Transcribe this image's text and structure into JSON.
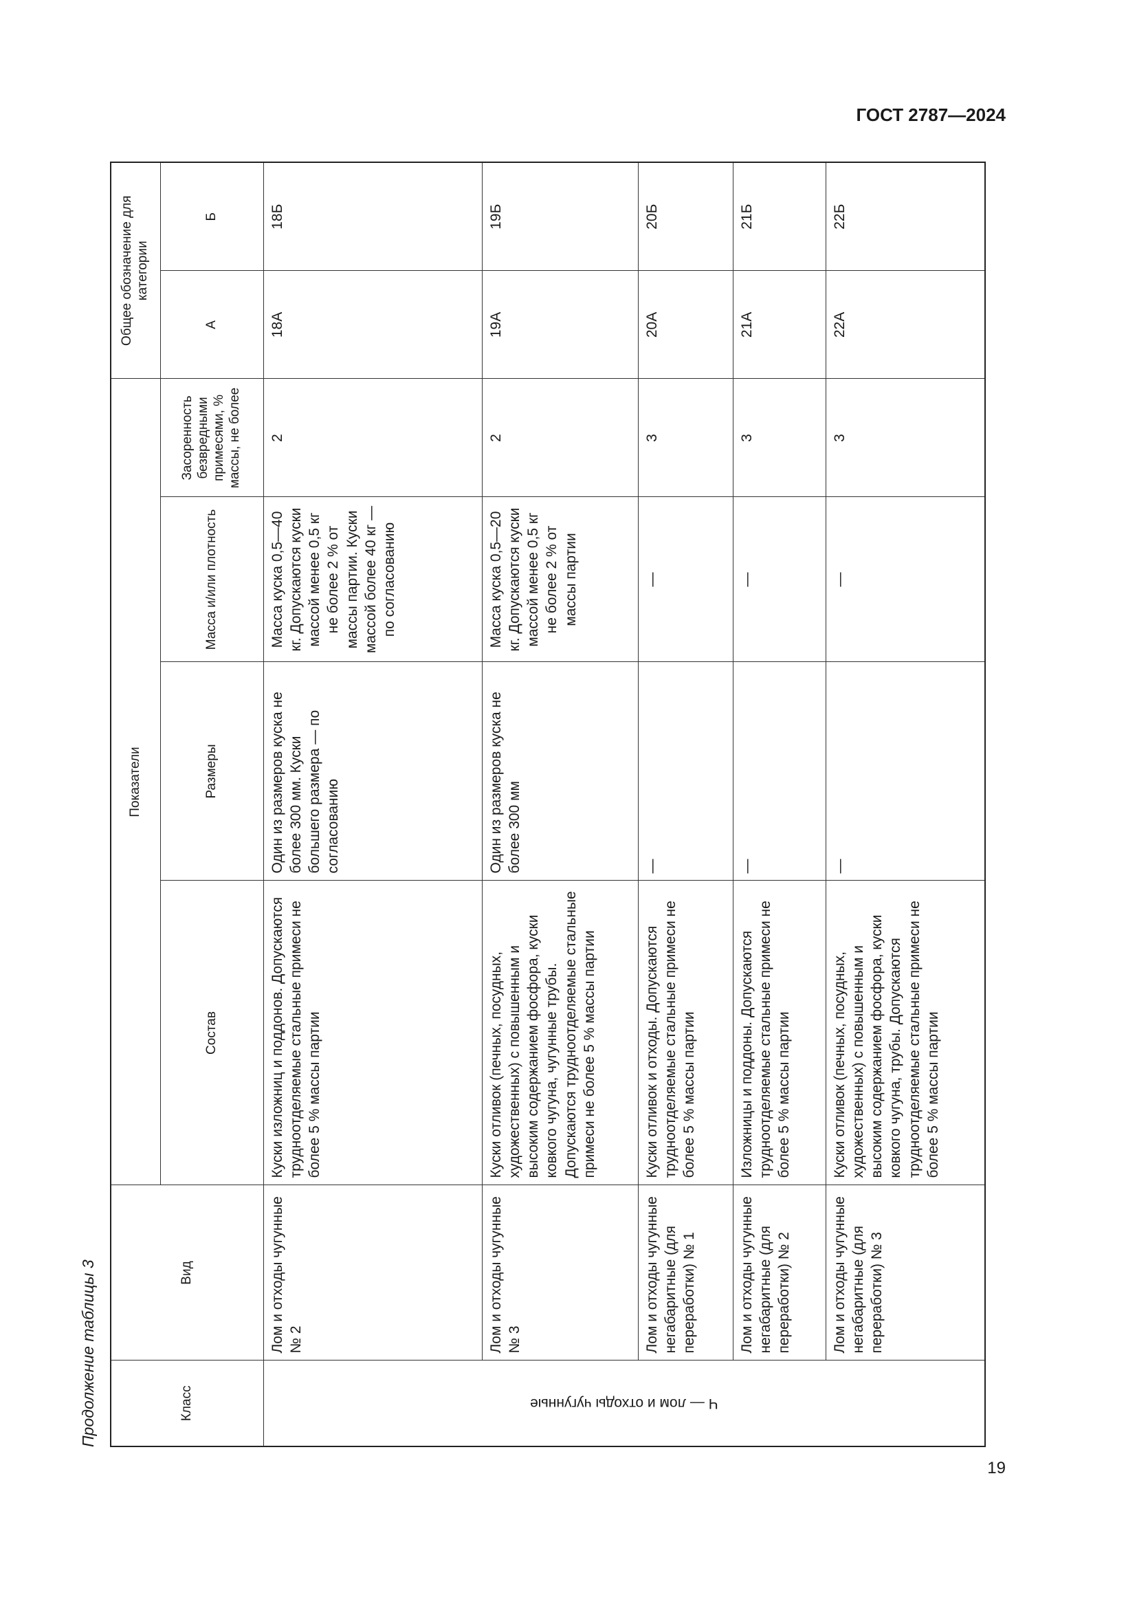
{
  "header": {
    "standard": "ГОСТ 2787—2024"
  },
  "caption": "Продолжение таблицы 3",
  "table": {
    "columns": {
      "class": "Класс",
      "kind": "Вид",
      "indicators": "Показатели",
      "composition": "Состав",
      "sizes": "Размеры",
      "mass": "Масса и/или плотность",
      "contamination": "Засоренность безвредными примесями, % массы, не более",
      "designation": "Общее обозначение для категории",
      "cat_a": "А",
      "cat_b": "Б"
    },
    "class_label": "Ч — лом и отходы чугунные",
    "rows": [
      [
        "Лом и отходы чугунные № 2",
        "Куски изложниц и поддонов. Допускаются трудноотделяемые стальные примеси не более 5 % массы партии",
        "Один из размеров куска не более 300 мм. Куски большего размера — по согласованию",
        "Масса куска 0,5—40 кг. Допускаются куски массой менее 0,5 кг не более 2 % от массы партии. Куски массой более 40 кг — по согласованию",
        2,
        "18А",
        "18Б"
      ],
      [
        "Лом и отходы чугунные № 3",
        "Куски отливок (печных, посудных, художественных) с повышенным и высоким содержанием фосфора, куски ковкого чугуна, чугунные трубы. Допускаются трудноотделяемые стальные примеси не более 5 % массы партии",
        "Один из размеров куска не более 300 мм",
        "Масса куска 0,5—20 кг. Допускаются куски массой менее 0,5 кг не более 2 % от массы партии",
        2,
        "19А",
        "19Б"
      ],
      [
        "Лом и отходы чугунные негабаритные (для переработки) № 1",
        "Куски отливок и отходы. Допускаются трудноотделяемые стальные примеси не более 5 % массы партии",
        "—",
        "—",
        3,
        "20А",
        "20Б"
      ],
      [
        "Лом и отходы чугунные негабаритные (для переработки) № 2",
        "Изложницы и поддоны. Допускаются трудноотделяемые стальные примеси не более 5 % массы партии",
        "—",
        "—",
        3,
        "21А",
        "21Б"
      ],
      [
        "Лом и отходы чугунные негабаритные (для переработки) № 3",
        "Куски отливок (печных, посудных, художественных) с повышенным и высоким содержанием фосфора, куски ковкого чугуна, трубы. Допускаются трудноотделяемые стальные примеси не более 5 % массы партии",
        "—",
        "—",
        3,
        "22А",
        "22Б"
      ]
    ]
  },
  "page_number": "19"
}
